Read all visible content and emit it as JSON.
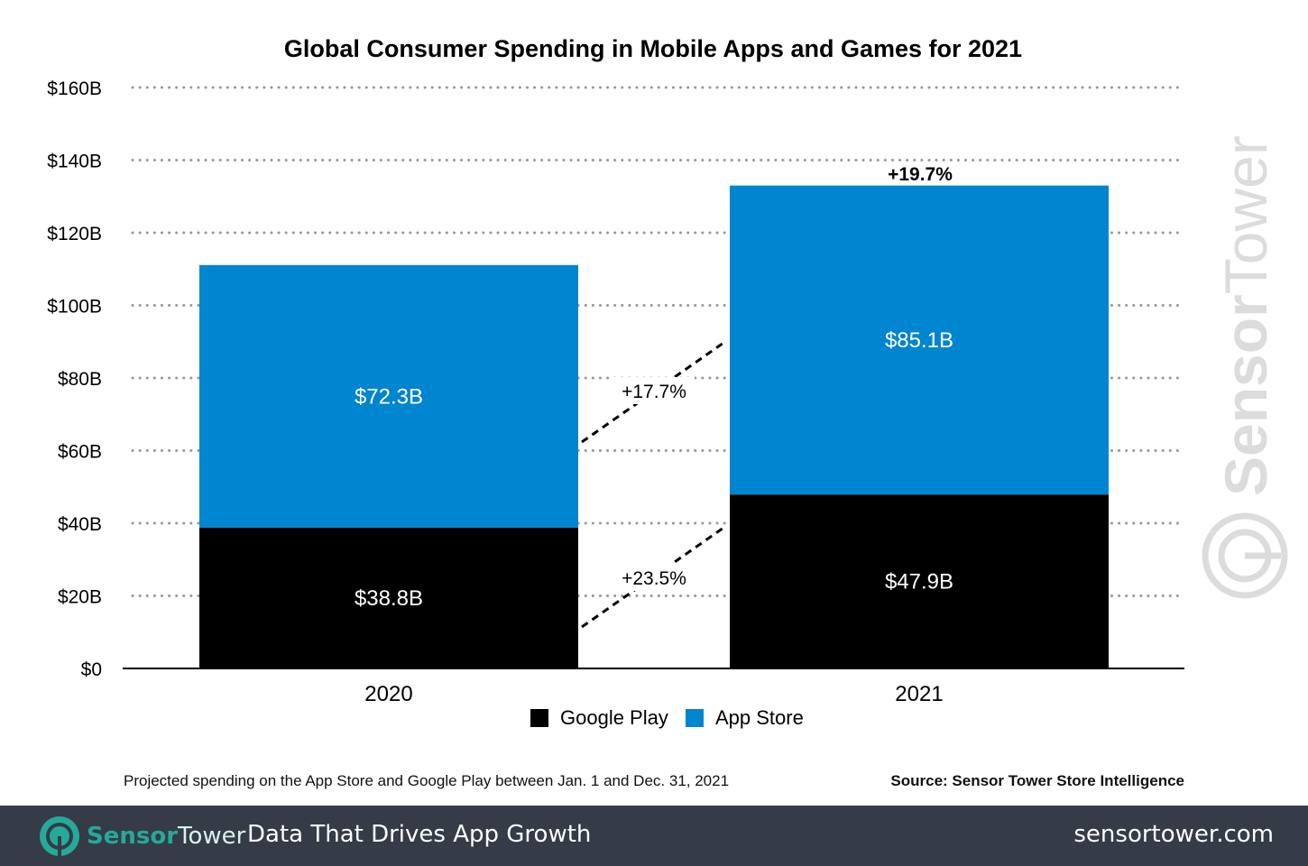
{
  "chart_data": {
    "type": "bar",
    "stacked": true,
    "title": "Global Consumer Spending in Mobile Apps and Games for 2021",
    "categories": [
      "2020",
      "2021"
    ],
    "series": [
      {
        "name": "Google Play",
        "values": [
          38.8,
          47.9
        ],
        "labels": [
          "$38.8B",
          "$47.9B"
        ],
        "color": "#000000"
      },
      {
        "name": "App Store",
        "values": [
          72.3,
          85.1
        ],
        "labels": [
          "$72.3B",
          "$85.1B"
        ],
        "color": "#0085d0"
      }
    ],
    "ylim": [
      0,
      160
    ],
    "yticks": [
      0,
      20,
      40,
      60,
      80,
      100,
      120,
      140,
      160
    ],
    "ytick_labels": [
      "$0",
      "$20B",
      "$40B",
      "$60B",
      "$80B",
      "$100B",
      "$120B",
      "$140B",
      "$160B"
    ],
    "grid": "dotted horizontal",
    "legend": "bottom-center",
    "annotations": {
      "total_growth": "+19.7%",
      "app_store_growth": "+17.7%",
      "google_play_growth": "+23.5%"
    }
  },
  "footnote": "Projected spending on the App Store and Google Play between Jan. 1 and Dec. 31, 2021",
  "source": "Source: Sensor Tower Store Intelligence",
  "watermark": "SensorTower",
  "footer": {
    "brand_a": "Sensor",
    "brand_b": "Tower",
    "tagline": "Data That Drives App Growth",
    "url": "sensortower.com",
    "brand_color": "#25a99a",
    "background": "#353b47"
  }
}
